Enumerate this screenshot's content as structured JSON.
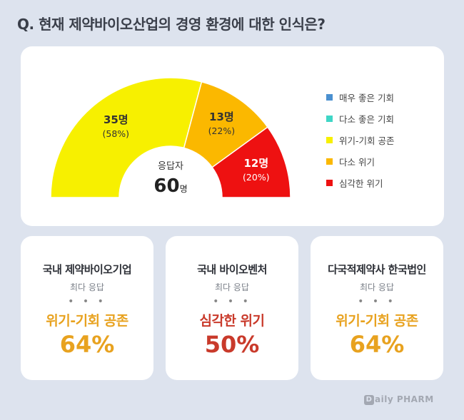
{
  "title": "Q. 현재 제약바이오산업의 경영 환경에 대한 인식은?",
  "chart_data": {
    "type": "pie",
    "subtype": "half-donut",
    "center_label": "응답자",
    "center_value": "60",
    "center_unit": "명",
    "legend_position": "right",
    "legend": [
      {
        "name": "매우 좋은 기회",
        "color": "#4a90d0"
      },
      {
        "name": "다소 좋은 기회",
        "color": "#3fd6c6"
      },
      {
        "name": "위기-기회 공존",
        "color": "#f7f000"
      },
      {
        "name": "다소 위기",
        "color": "#fbb800"
      },
      {
        "name": "심각한 위기",
        "color": "#ee1111"
      }
    ],
    "slices": [
      {
        "name": "매우 좋은 기회",
        "count": 0,
        "percent": 0,
        "color": "#4a90d0",
        "count_label": "",
        "pct_label": "",
        "text_color": "#333333"
      },
      {
        "name": "다소 좋은 기회",
        "count": 0,
        "percent": 0,
        "color": "#3fd6c6",
        "count_label": "",
        "pct_label": "",
        "text_color": "#333333"
      },
      {
        "name": "위기-기회 공존",
        "count": 35,
        "percent": 58,
        "color": "#f7f000",
        "count_label": "35명",
        "pct_label": "(58%)",
        "text_color": "#333333"
      },
      {
        "name": "다소 위기",
        "count": 13,
        "percent": 22,
        "color": "#fbb800",
        "count_label": "13명",
        "pct_label": "(22%)",
        "text_color": "#333333"
      },
      {
        "name": "심각한 위기",
        "count": 12,
        "percent": 20,
        "color": "#ee1111",
        "count_label": "12명",
        "pct_label": "(20%)",
        "text_color": "#ffffff"
      }
    ]
  },
  "cards": [
    {
      "title": "국내 제약바이오기업",
      "sub": "최다 응답",
      "dots": "• • •",
      "answer": "위기-기회 공존",
      "percent": "64%",
      "color": "#e8a21f"
    },
    {
      "title": "국내 바이오벤처",
      "sub": "최다 응답",
      "dots": "• • •",
      "answer": "심각한 위기",
      "percent": "50%",
      "color": "#c93a2b"
    },
    {
      "title": "다국적제약사 한국법인",
      "sub": "최다 응답",
      "dots": "• • •",
      "answer": "위기-기회 공존",
      "percent": "64%",
      "color": "#e8a21f"
    }
  ],
  "logo": {
    "mark": "D",
    "text": "aily PHARM"
  }
}
